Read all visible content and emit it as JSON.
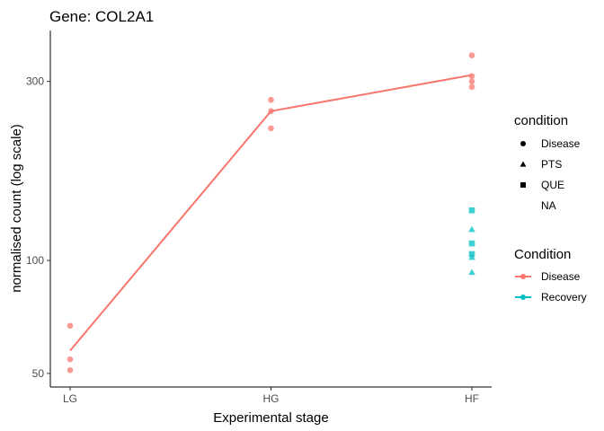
{
  "chart_data": {
    "type": "scatter",
    "title": "Gene: COL2A1",
    "xlabel": "Experimental stage",
    "ylabel": "normalised count (log scale)",
    "y_scale": "log",
    "ylim": [
      46,
      410
    ],
    "y_ticks": [
      50,
      100,
      300
    ],
    "y_tick_labels": [
      "50",
      "100",
      "300"
    ],
    "categories": [
      "LG",
      "HG",
      "HF"
    ],
    "grid": false,
    "legend_position": "right",
    "series": [
      {
        "name": "Disease",
        "color": "#F8766D",
        "points": [
          {
            "x": "LG",
            "y": 67,
            "shape": "circle"
          },
          {
            "x": "LG",
            "y": 54.5,
            "shape": "circle"
          },
          {
            "x": "LG",
            "y": 51,
            "shape": "circle"
          },
          {
            "x": "HG",
            "y": 268,
            "shape": "circle"
          },
          {
            "x": "HG",
            "y": 250,
            "shape": "circle"
          },
          {
            "x": "HG",
            "y": 225,
            "shape": "circle"
          },
          {
            "x": "HF",
            "y": 352,
            "shape": "circle"
          },
          {
            "x": "HF",
            "y": 310,
            "shape": "circle"
          },
          {
            "x": "HF",
            "y": 300,
            "shape": "circle"
          },
          {
            "x": "HF",
            "y": 290,
            "shape": "circle"
          }
        ],
        "line": [
          {
            "x": "LG",
            "y": 57.5
          },
          {
            "x": "HG",
            "y": 250
          },
          {
            "x": "HF",
            "y": 312
          }
        ]
      },
      {
        "name": "Recovery",
        "color": "#00BFC4",
        "points": [
          {
            "x": "HF",
            "y": 136,
            "shape": "square"
          },
          {
            "x": "HF",
            "y": 121,
            "shape": "triangle"
          },
          {
            "x": "HF",
            "y": 111,
            "shape": "square"
          },
          {
            "x": "HF",
            "y": 104,
            "shape": "square"
          },
          {
            "x": "HF",
            "y": 102,
            "shape": "triangle"
          },
          {
            "x": "HF",
            "y": 93,
            "shape": "triangle"
          }
        ]
      }
    ],
    "legends": [
      {
        "title": "condition",
        "items": [
          {
            "label": "Disease",
            "shape": "circle"
          },
          {
            "label": "PTS",
            "shape": "triangle"
          },
          {
            "label": "QUE",
            "shape": "square"
          },
          {
            "label": "NA",
            "shape": "none"
          }
        ]
      },
      {
        "title": "Condition",
        "items": [
          {
            "label": "Disease",
            "color": "#F8766D"
          },
          {
            "label": "Recovery",
            "color": "#00BFC4"
          }
        ]
      }
    ]
  }
}
